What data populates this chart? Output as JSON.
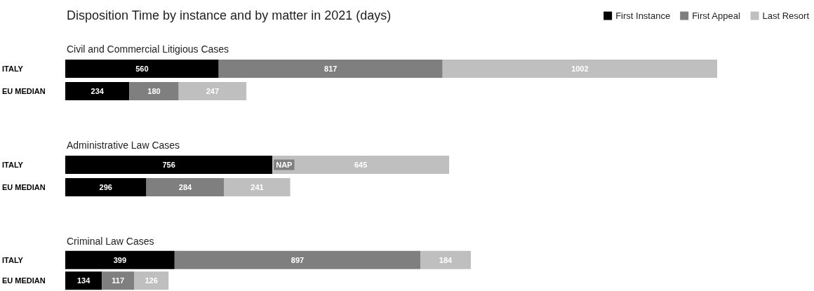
{
  "chart_data": [
    {
      "type": "bar",
      "orientation": "horizontal",
      "stacked": true,
      "title": "Disposition Time by instance and by matter in 2021 (days)",
      "subtitle": "Civil and Commercial Litigious Cases",
      "categories": [
        "ITALY",
        "EU MEDIAN"
      ],
      "legend": "top right",
      "series": [
        {
          "name": "First Instance",
          "color": "#000000",
          "values": [
            560,
            234
          ],
          "value_labels": [
            "560",
            "234"
          ]
        },
        {
          "name": "First Appeal",
          "color": "#7f7f7f",
          "values": [
            817,
            180
          ],
          "value_labels": [
            "817",
            "180"
          ]
        },
        {
          "name": "Last Resort",
          "color": "#bfbfbf",
          "values": [
            1002,
            247
          ],
          "value_labels": [
            "1002",
            "247"
          ]
        }
      ]
    },
    {
      "type": "bar",
      "orientation": "horizontal",
      "stacked": true,
      "title": "Administrative Law Cases",
      "categories": [
        "ITALY",
        "EU MEDIAN"
      ],
      "annotations": [
        {
          "text": "NAP",
          "x": 756,
          "y": "ITALY"
        }
      ],
      "series": [
        {
          "color": "#000000",
          "values": [
            756,
            296
          ],
          "value_labels": [
            "756",
            "296"
          ]
        },
        {
          "color": "#7f7f7f",
          "values": [
            null,
            284
          ],
          "value_labels": [
            null,
            "284"
          ]
        },
        {
          "color": "#bfbfbf",
          "values": [
            645,
            241
          ],
          "value_labels": [
            "645",
            "241"
          ]
        }
      ]
    },
    {
      "type": "bar",
      "orientation": "horizontal",
      "stacked": true,
      "title": "Criminal Law Cases",
      "categories": [
        "ITALY",
        "EU MEDIAN"
      ],
      "series": [
        {
          "color": "#000000",
          "values": [
            399,
            134
          ],
          "value_labels": [
            "399",
            "134"
          ]
        },
        {
          "color": "#7f7f7f",
          "values": [
            897,
            117
          ],
          "value_labels": [
            "897",
            "117"
          ]
        },
        {
          "color": "#bfbfbf",
          "values": [
            184,
            126
          ],
          "value_labels": [
            "184",
            "126"
          ]
        }
      ]
    }
  ]
}
